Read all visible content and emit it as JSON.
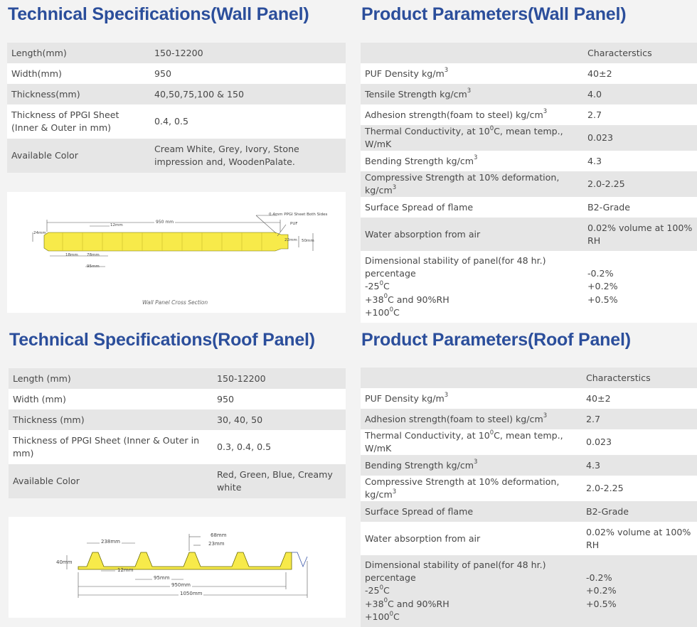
{
  "wall_specs": {
    "title": "Technical Specifications(Wall Panel)",
    "rows": [
      {
        "label": "Length(mm)",
        "value": "150-12200"
      },
      {
        "label": "Width(mm)",
        "value": "950"
      },
      {
        "label": "Thickness(mm)",
        "value": "40,50,75,100 & 150"
      },
      {
        "label": "Thickness of PPGI Sheet (Inner & Outer in mm)",
        "value": "0.4, 0.5"
      },
      {
        "label": "Available Color",
        "value": "Cream White, Grey, Ivory, Stone impression and, WoodenPalate."
      }
    ],
    "figure": {
      "caption": "Wall Panel Cross Section",
      "labels": {
        "width": "950 mm",
        "sheet": "0.4mm PPGI Sheet Both Sides",
        "puf": "PUF",
        "gap": "12mm",
        "edge": "24mm",
        "inner": "22mm",
        "thick": "50mm",
        "rib1": "18mm",
        "rib2": "78mm",
        "rib3": "95mm"
      }
    }
  },
  "wall_params": {
    "title": "Product Parameters(Wall Panel)",
    "header": "Characterstics",
    "rows": [
      {
        "label": "PUF Density kg/m",
        "sup": "3",
        "value": "40±2"
      },
      {
        "label": "Tensile Strength kg/cm",
        "sup": "3",
        "value": "4.0"
      },
      {
        "label": "Adhesion strength(foam to steel) kg/cm",
        "sup": "3",
        "value": "2.7"
      },
      {
        "pre": "Thermal Conductivity, at 10",
        "sup": "0",
        "post": "C, mean temp., W/mK",
        "value": "0.023"
      },
      {
        "label": "Bending Strength kg/cm",
        "sup": "3",
        "value": "4.3"
      },
      {
        "label": "Compressive Strength at 10% deformation, kg/cm",
        "sup": "3",
        "value": "2.0-2.25"
      },
      {
        "label": "Surface Spread of flame",
        "value": "B2-Grade"
      },
      {
        "label": "Water absorption from air",
        "value": "0.02% volume at 100% RH"
      }
    ],
    "dim": {
      "line1": "Dimensional stability of panel(for 48 hr.)",
      "line2": "percentage",
      "line3_pre": "-25",
      "line3_post": "C",
      "line4_pre": "+38",
      "line4_post": "C and 90%RH",
      "line5_pre": "+100",
      "line5_post": "C",
      "sup": "0",
      "v1": "-0.2%",
      "v2": "+0.2%",
      "v3": "+0.5%"
    }
  },
  "roof_specs": {
    "title": "Technical Specifications(Roof Panel)",
    "rows": [
      {
        "label": "Length (mm)",
        "value": "150-12200"
      },
      {
        "label": "Width (mm)",
        "value": "950"
      },
      {
        "label": "Thickness (mm)",
        "value": "30, 40, 50"
      },
      {
        "label": "Thickness of PPGI Sheet (Inner & Outer in mm)",
        "value": "0.3, 0.4, 0.5"
      },
      {
        "label": "Available Color",
        "value": "Red, Green, Blue, Creamy white"
      }
    ],
    "figure": {
      "labels": {
        "pitch": "238mm",
        "crest": "68mm",
        "top": "23mm",
        "thick": "40mm",
        "gap": "12mm",
        "base": "95mm",
        "cover": "950mm",
        "total": "1050mm"
      }
    }
  },
  "roof_params": {
    "title": "Product Parameters(Roof Panel)",
    "header": "Characterstics",
    "rows": [
      {
        "label": "PUF Density kg/m",
        "sup": "3",
        "value": "40±2"
      },
      {
        "label": "Adhesion strength(foam to steel) kg/cm",
        "sup": "3",
        "value": "2.7"
      },
      {
        "pre": "Thermal Conductivity, at 10",
        "sup": "0",
        "post": "C, mean temp., W/mK",
        "value": "0.023"
      },
      {
        "label": "Bending Strength kg/cm",
        "sup": "3",
        "value": "4.3"
      },
      {
        "label": "Compressive Strength at 10% deformation, kg/cm",
        "sup": "3",
        "value": "2.0-2.25"
      },
      {
        "label": "Surface Spread of flame",
        "value": "B2-Grade"
      },
      {
        "label": "Water absorption from air",
        "value": "0.02% volume at 100% RH"
      }
    ],
    "dim": {
      "line1": "Dimensional stability of panel(for 48 hr.)",
      "line2": "percentage",
      "line3_pre": "-25",
      "line3_post": "C",
      "line4_pre": "+38",
      "line4_post": "C and 90%RH",
      "line5_pre": "+100",
      "line5_post": "C",
      "sup": "0",
      "v1": "-0.2%",
      "v2": "+0.2%",
      "v3": "+0.5%"
    }
  },
  "colors": {
    "heading": "#2b4e9b",
    "row_shaded": "#e6e6e6",
    "row_white": "#ffffff",
    "foam": "#f7ea4a"
  }
}
